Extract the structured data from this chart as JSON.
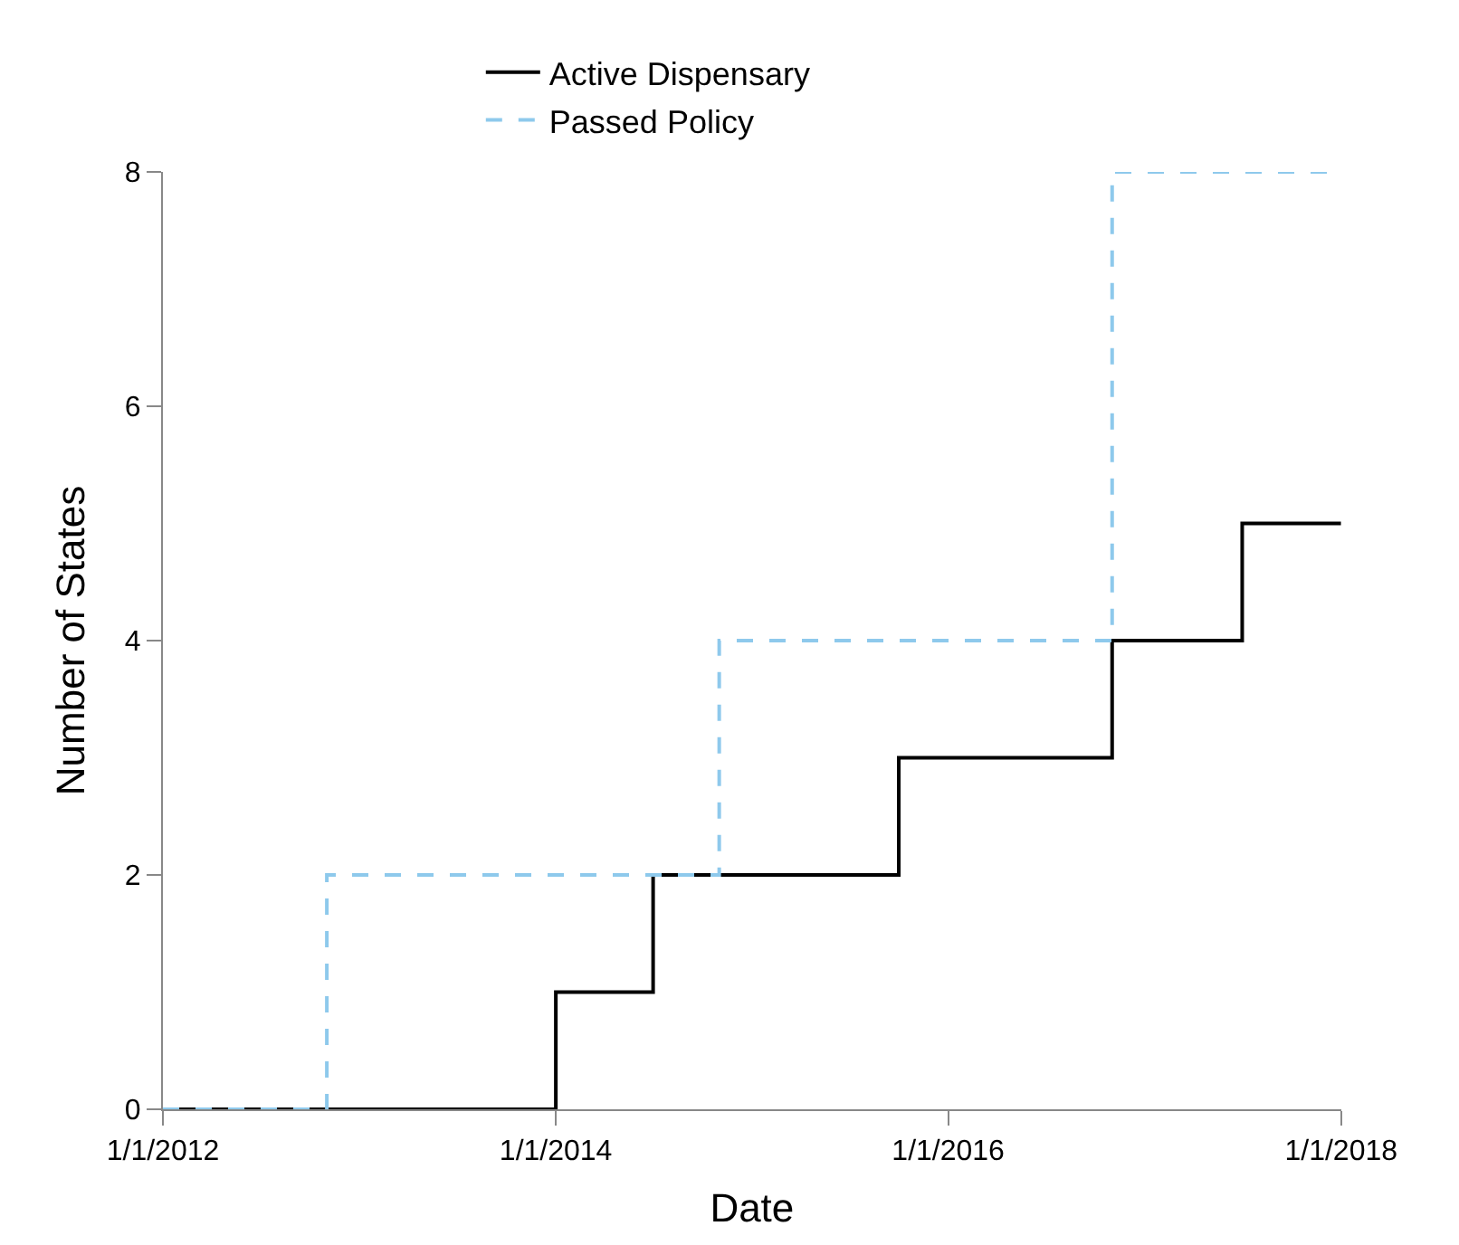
{
  "chart_data": {
    "type": "step",
    "xlabel": "Date",
    "ylabel": "Number of States",
    "series": [
      {
        "name": "Active Dispensary",
        "color": "#000000",
        "line_style": "solid",
        "x": [
          "2012-01-01",
          "2014-01-01",
          "2014-07-01",
          "2015-10-01",
          "2016-11-01",
          "2017-07-01",
          "2018-01-01"
        ],
        "values": [
          0,
          1,
          2,
          3,
          4,
          5,
          5
        ]
      },
      {
        "name": "Passed Policy",
        "color": "#8ec9ec",
        "line_style": "dashed",
        "x": [
          "2012-01-01",
          "2012-11-01",
          "2014-11-01",
          "2016-11-01",
          "2018-01-01"
        ],
        "values": [
          0,
          2,
          4,
          8,
          8
        ]
      }
    ],
    "xlim": [
      "2012-01-01",
      "2018-01-01"
    ],
    "xticks": [
      {
        "value": "2012-01-01",
        "label": "1/1/2012"
      },
      {
        "value": "2014-01-01",
        "label": "1/1/2014"
      },
      {
        "value": "2016-01-01",
        "label": "1/1/2016"
      },
      {
        "value": "2018-01-01",
        "label": "1/1/2018"
      }
    ],
    "ylim": [
      0,
      8
    ],
    "yticks": [
      0,
      2,
      4,
      6,
      8
    ],
    "legend": "top"
  }
}
